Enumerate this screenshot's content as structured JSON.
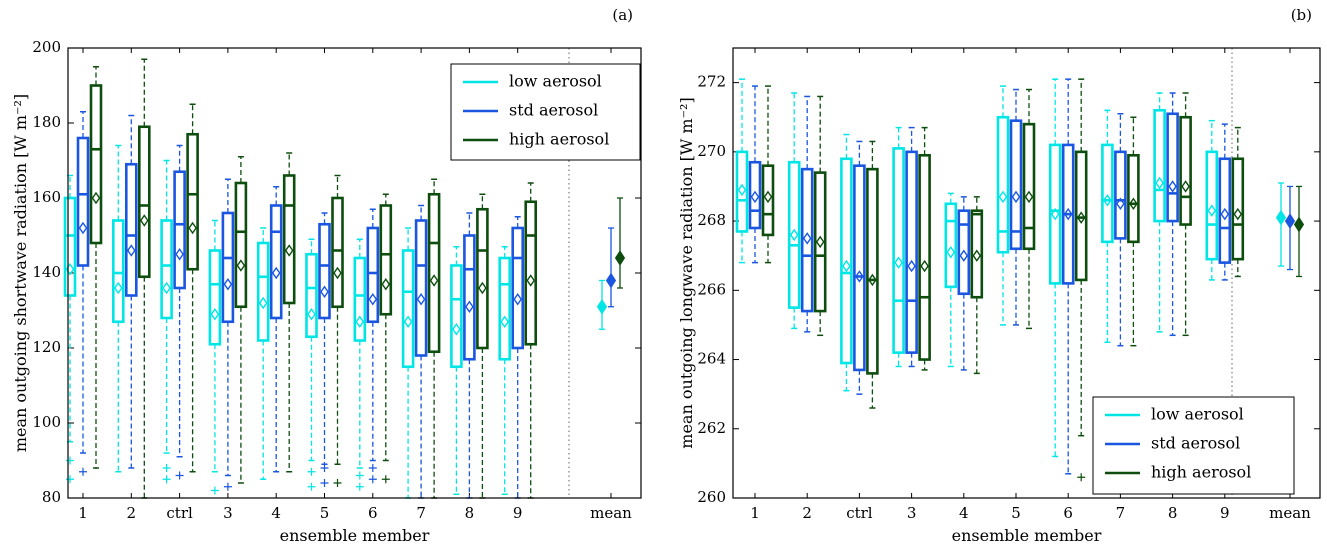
{
  "chart_data": [
    {
      "type": "box",
      "panel_label": "(a)",
      "ylabel": "mean outgoing shortwave radiation [W m⁻²]",
      "xlabel": "ensemble member",
      "ylim": [
        80,
        200
      ],
      "yticks": [
        80,
        100,
        120,
        140,
        160,
        180,
        200
      ],
      "categories": [
        "1",
        "2",
        "ctrl",
        "3",
        "4",
        "5",
        "6",
        "7",
        "8",
        "9"
      ],
      "mean_label": "mean",
      "legend_position": "top-right",
      "series": [
        {
          "name": "low aerosol",
          "color": "#00e5e5",
          "boxes": [
            {
              "q1": 134,
              "median": 150,
              "q3": 160,
              "wlo": 95,
              "whi": 166,
              "mean": 141,
              "fliers": [
                90,
                85
              ]
            },
            {
              "q1": 127,
              "median": 140,
              "q3": 154,
              "wlo": 87,
              "whi": 174,
              "mean": 136,
              "fliers": []
            },
            {
              "q1": 128,
              "median": 142,
              "q3": 154,
              "wlo": 92,
              "whi": 170,
              "mean": 136,
              "fliers": [
                88,
                85
              ]
            },
            {
              "q1": 121,
              "median": 137,
              "q3": 146,
              "wlo": 87,
              "whi": 154,
              "mean": 129,
              "fliers": [
                82
              ]
            },
            {
              "q1": 122,
              "median": 139,
              "q3": 148,
              "wlo": 85,
              "whi": 152,
              "mean": 132,
              "fliers": []
            },
            {
              "q1": 123,
              "median": 136,
              "q3": 145,
              "wlo": 90,
              "whi": 149,
              "mean": 129,
              "fliers": [
                87,
                83
              ]
            },
            {
              "q1": 122,
              "median": 134,
              "q3": 144,
              "wlo": 88,
              "whi": 149,
              "mean": 127,
              "fliers": [
                86,
                83
              ]
            },
            {
              "q1": 115,
              "median": 135,
              "q3": 146,
              "wlo": 80,
              "whi": 152,
              "mean": 127,
              "fliers": []
            },
            {
              "q1": 115,
              "median": 133,
              "q3": 142,
              "wlo": 81,
              "whi": 147,
              "mean": 125,
              "fliers": []
            },
            {
              "q1": 117,
              "median": 137,
              "q3": 144,
              "wlo": 81,
              "whi": 147,
              "mean": 127,
              "fliers": []
            }
          ],
          "overall_mean": {
            "mean": 131,
            "lo": 125,
            "hi": 138
          }
        },
        {
          "name": "std aerosol",
          "color": "#1a56e0",
          "boxes": [
            {
              "q1": 142,
              "median": 161,
              "q3": 176,
              "wlo": 92,
              "whi": 183,
              "mean": 152,
              "fliers": [
                87
              ]
            },
            {
              "q1": 134,
              "median": 150,
              "q3": 169,
              "wlo": 88,
              "whi": 182,
              "mean": 146,
              "fliers": []
            },
            {
              "q1": 136,
              "median": 153,
              "q3": 167,
              "wlo": 91,
              "whi": 174,
              "mean": 145,
              "fliers": [
                86
              ]
            },
            {
              "q1": 127,
              "median": 144,
              "q3": 156,
              "wlo": 86,
              "whi": 165,
              "mean": 137,
              "fliers": [
                83
              ]
            },
            {
              "q1": 128,
              "median": 151,
              "q3": 158,
              "wlo": 87,
              "whi": 163,
              "mean": 140,
              "fliers": []
            },
            {
              "q1": 128,
              "median": 142,
              "q3": 153,
              "wlo": 89,
              "whi": 156,
              "mean": 135,
              "fliers": [
                88,
                84
              ]
            },
            {
              "q1": 127,
              "median": 140,
              "q3": 152,
              "wlo": 90,
              "whi": 157,
              "mean": 133,
              "fliers": [
                88,
                85
              ]
            },
            {
              "q1": 118,
              "median": 142,
              "q3": 154,
              "wlo": 80,
              "whi": 158,
              "mean": 133,
              "fliers": []
            },
            {
              "q1": 117,
              "median": 141,
              "q3": 150,
              "wlo": 80,
              "whi": 156,
              "mean": 131,
              "fliers": []
            },
            {
              "q1": 120,
              "median": 144,
              "q3": 152,
              "wlo": 80,
              "whi": 155,
              "mean": 133,
              "fliers": []
            }
          ],
          "overall_mean": {
            "mean": 138,
            "lo": 131,
            "hi": 152
          }
        },
        {
          "name": "high aerosol",
          "color": "#0d4d0d",
          "boxes": [
            {
              "q1": 148,
              "median": 173,
              "q3": 190,
              "wlo": 88,
              "whi": 195,
              "mean": 160,
              "fliers": []
            },
            {
              "q1": 139,
              "median": 158,
              "q3": 179,
              "wlo": 80,
              "whi": 197,
              "mean": 154,
              "fliers": []
            },
            {
              "q1": 141,
              "median": 161,
              "q3": 177,
              "wlo": 87,
              "whi": 185,
              "mean": 152,
              "fliers": []
            },
            {
              "q1": 131,
              "median": 151,
              "q3": 164,
              "wlo": 84,
              "whi": 171,
              "mean": 142,
              "fliers": []
            },
            {
              "q1": 132,
              "median": 158,
              "q3": 166,
              "wlo": 87,
              "whi": 172,
              "mean": 146,
              "fliers": []
            },
            {
              "q1": 131,
              "median": 146,
              "q3": 160,
              "wlo": 89,
              "whi": 166,
              "mean": 140,
              "fliers": [
                84
              ]
            },
            {
              "q1": 129,
              "median": 145,
              "q3": 158,
              "wlo": 90,
              "whi": 161,
              "mean": 137,
              "fliers": [
                85
              ]
            },
            {
              "q1": 119,
              "median": 148,
              "q3": 161,
              "wlo": 80,
              "whi": 165,
              "mean": 138,
              "fliers": []
            },
            {
              "q1": 120,
              "median": 146,
              "q3": 157,
              "wlo": 80,
              "whi": 161,
              "mean": 136,
              "fliers": []
            },
            {
              "q1": 121,
              "median": 150,
              "q3": 159,
              "wlo": 80,
              "whi": 164,
              "mean": 138,
              "fliers": []
            }
          ],
          "overall_mean": {
            "mean": 144,
            "lo": 136,
            "hi": 160
          }
        }
      ]
    },
    {
      "type": "box",
      "panel_label": "(b)",
      "ylabel": "mean outgoing longwave radiation [W m⁻²]",
      "xlabel": "ensemble member",
      "ylim": [
        260,
        273
      ],
      "yticks": [
        260,
        262,
        264,
        266,
        268,
        270,
        272
      ],
      "categories": [
        "1",
        "2",
        "ctrl",
        "3",
        "4",
        "5",
        "6",
        "7",
        "8",
        "9"
      ],
      "mean_label": "mean",
      "legend_position": "bottom-right",
      "series": [
        {
          "name": "low aerosol",
          "color": "#00e5e5",
          "boxes": [
            {
              "q1": 267.7,
              "median": 268.6,
              "q3": 270.0,
              "wlo": 266.8,
              "whi": 272.1,
              "mean": 268.9,
              "fliers": []
            },
            {
              "q1": 265.5,
              "median": 267.3,
              "q3": 269.7,
              "wlo": 264.9,
              "whi": 271.7,
              "mean": 267.6,
              "fliers": []
            },
            {
              "q1": 263.9,
              "median": 266.5,
              "q3": 269.8,
              "wlo": 263.1,
              "whi": 270.5,
              "mean": 266.7,
              "fliers": []
            },
            {
              "q1": 264.2,
              "median": 265.7,
              "q3": 270.1,
              "wlo": 263.8,
              "whi": 270.7,
              "mean": 266.8,
              "fliers": []
            },
            {
              "q1": 266.1,
              "median": 268.0,
              "q3": 268.5,
              "wlo": 263.8,
              "whi": 268.8,
              "mean": 267.1,
              "fliers": []
            },
            {
              "q1": 267.1,
              "median": 267.7,
              "q3": 271.0,
              "wlo": 265.0,
              "whi": 271.9,
              "mean": 268.7,
              "fliers": []
            },
            {
              "q1": 266.2,
              "median": 268.3,
              "q3": 270.2,
              "wlo": 261.2,
              "whi": 272.1,
              "mean": 268.2,
              "fliers": []
            },
            {
              "q1": 267.4,
              "median": 268.6,
              "q3": 270.2,
              "wlo": 264.5,
              "whi": 271.2,
              "mean": 268.6,
              "fliers": []
            },
            {
              "q1": 268.0,
              "median": 268.9,
              "q3": 271.2,
              "wlo": 264.8,
              "whi": 271.7,
              "mean": 269.1,
              "fliers": []
            },
            {
              "q1": 266.9,
              "median": 267.9,
              "q3": 270.0,
              "wlo": 266.3,
              "whi": 270.9,
              "mean": 268.3,
              "fliers": []
            }
          ],
          "overall_mean": {
            "mean": 268.1,
            "lo": 266.7,
            "hi": 269.1
          }
        },
        {
          "name": "std aerosol",
          "color": "#1a56e0",
          "boxes": [
            {
              "q1": 267.8,
              "median": 268.3,
              "q3": 269.7,
              "wlo": 266.8,
              "whi": 271.9,
              "mean": 268.7,
              "fliers": []
            },
            {
              "q1": 265.4,
              "median": 267.0,
              "q3": 269.5,
              "wlo": 264.8,
              "whi": 271.6,
              "mean": 267.5,
              "fliers": []
            },
            {
              "q1": 263.7,
              "median": 266.4,
              "q3": 269.6,
              "wlo": 263.0,
              "whi": 270.3,
              "mean": 266.4,
              "fliers": []
            },
            {
              "q1": 264.2,
              "median": 265.7,
              "q3": 270.0,
              "wlo": 263.8,
              "whi": 270.7,
              "mean": 266.7,
              "fliers": []
            },
            {
              "q1": 265.9,
              "median": 267.9,
              "q3": 268.3,
              "wlo": 263.7,
              "whi": 268.7,
              "mean": 267.0,
              "fliers": []
            },
            {
              "q1": 267.2,
              "median": 267.7,
              "q3": 270.9,
              "wlo": 265.0,
              "whi": 271.8,
              "mean": 268.7,
              "fliers": []
            },
            {
              "q1": 266.2,
              "median": 268.2,
              "q3": 270.2,
              "wlo": 260.7,
              "whi": 272.1,
              "mean": 268.2,
              "fliers": []
            },
            {
              "q1": 267.5,
              "median": 268.6,
              "q3": 270.0,
              "wlo": 264.4,
              "whi": 271.1,
              "mean": 268.5,
              "fliers": []
            },
            {
              "q1": 268.0,
              "median": 268.8,
              "q3": 271.1,
              "wlo": 264.7,
              "whi": 271.7,
              "mean": 269.0,
              "fliers": []
            },
            {
              "q1": 266.8,
              "median": 267.8,
              "q3": 269.8,
              "wlo": 266.3,
              "whi": 270.8,
              "mean": 268.2,
              "fliers": []
            }
          ],
          "overall_mean": {
            "mean": 268.0,
            "lo": 266.6,
            "hi": 269.0
          }
        },
        {
          "name": "high aerosol",
          "color": "#0d4d0d",
          "boxes": [
            {
              "q1": 267.6,
              "median": 268.2,
              "q3": 269.6,
              "wlo": 266.8,
              "whi": 271.9,
              "mean": 268.7,
              "fliers": []
            },
            {
              "q1": 265.4,
              "median": 267.0,
              "q3": 269.4,
              "wlo": 264.7,
              "whi": 271.6,
              "mean": 267.4,
              "fliers": []
            },
            {
              "q1": 263.6,
              "median": 266.3,
              "q3": 269.5,
              "wlo": 262.6,
              "whi": 270.3,
              "mean": 266.3,
              "fliers": []
            },
            {
              "q1": 264.0,
              "median": 265.8,
              "q3": 269.9,
              "wlo": 263.7,
              "whi": 270.7,
              "mean": 266.7,
              "fliers": []
            },
            {
              "q1": 265.8,
              "median": 268.2,
              "q3": 268.3,
              "wlo": 263.6,
              "whi": 268.7,
              "mean": 267.0,
              "fliers": []
            },
            {
              "q1": 267.2,
              "median": 267.8,
              "q3": 270.8,
              "wlo": 264.9,
              "whi": 271.8,
              "mean": 268.7,
              "fliers": []
            },
            {
              "q1": 266.3,
              "median": 268.1,
              "q3": 270.0,
              "wlo": 261.8,
              "whi": 272.1,
              "mean": 268.1,
              "fliers": [
                260.6
              ]
            },
            {
              "q1": 267.4,
              "median": 268.5,
              "q3": 269.9,
              "wlo": 264.4,
              "whi": 271.0,
              "mean": 268.5,
              "fliers": []
            },
            {
              "q1": 267.9,
              "median": 268.7,
              "q3": 271.0,
              "wlo": 264.7,
              "whi": 271.7,
              "mean": 269.0,
              "fliers": []
            },
            {
              "q1": 266.9,
              "median": 267.9,
              "q3": 269.8,
              "wlo": 266.4,
              "whi": 270.7,
              "mean": 268.2,
              "fliers": []
            }
          ],
          "overall_mean": {
            "mean": 267.9,
            "lo": 266.4,
            "hi": 269.0
          }
        }
      ]
    }
  ]
}
